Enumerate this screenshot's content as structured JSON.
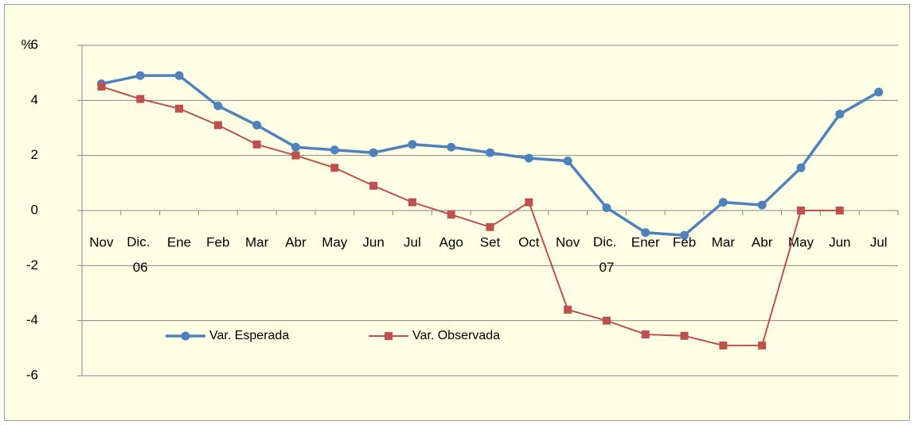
{
  "chart_data": {
    "type": "line",
    "ylabel": "%",
    "categories": [
      "Nov",
      "Dic. 06",
      "Ene",
      "Feb",
      "Mar",
      "Abr",
      "May",
      "Jun",
      "Jul",
      "Ago",
      "Set",
      "Oct",
      "Nov",
      "Dic. 07",
      "Ener",
      "Feb",
      "Mar",
      "Abr",
      "May",
      "Jun",
      "Jul"
    ],
    "series": [
      {
        "name": "Var. Esperada",
        "color": "#4f81bd",
        "marker": "circle",
        "values": [
          4.6,
          4.9,
          4.9,
          3.8,
          3.1,
          2.3,
          2.2,
          2.1,
          2.4,
          2.3,
          2.1,
          1.9,
          1.8,
          0.1,
          -0.8,
          -0.9,
          0.3,
          0.2,
          1.55,
          3.5,
          4.3
        ]
      },
      {
        "name": "Var. Observada",
        "color": "#c0504d",
        "marker": "square",
        "values": [
          4.5,
          4.05,
          3.7,
          3.1,
          2.4,
          2.0,
          1.55,
          0.9,
          0.3,
          -0.15,
          -0.6,
          0.3,
          -3.6,
          -4.0,
          -4.5,
          -4.55,
          -4.9,
          -4.9,
          0,
          0,
          null
        ]
      }
    ],
    "ylim": [
      -6,
      6
    ],
    "yticks": [
      -6,
      -4,
      -2,
      0,
      2,
      4,
      6
    ],
    "grid": true,
    "legend": "lower left"
  }
}
